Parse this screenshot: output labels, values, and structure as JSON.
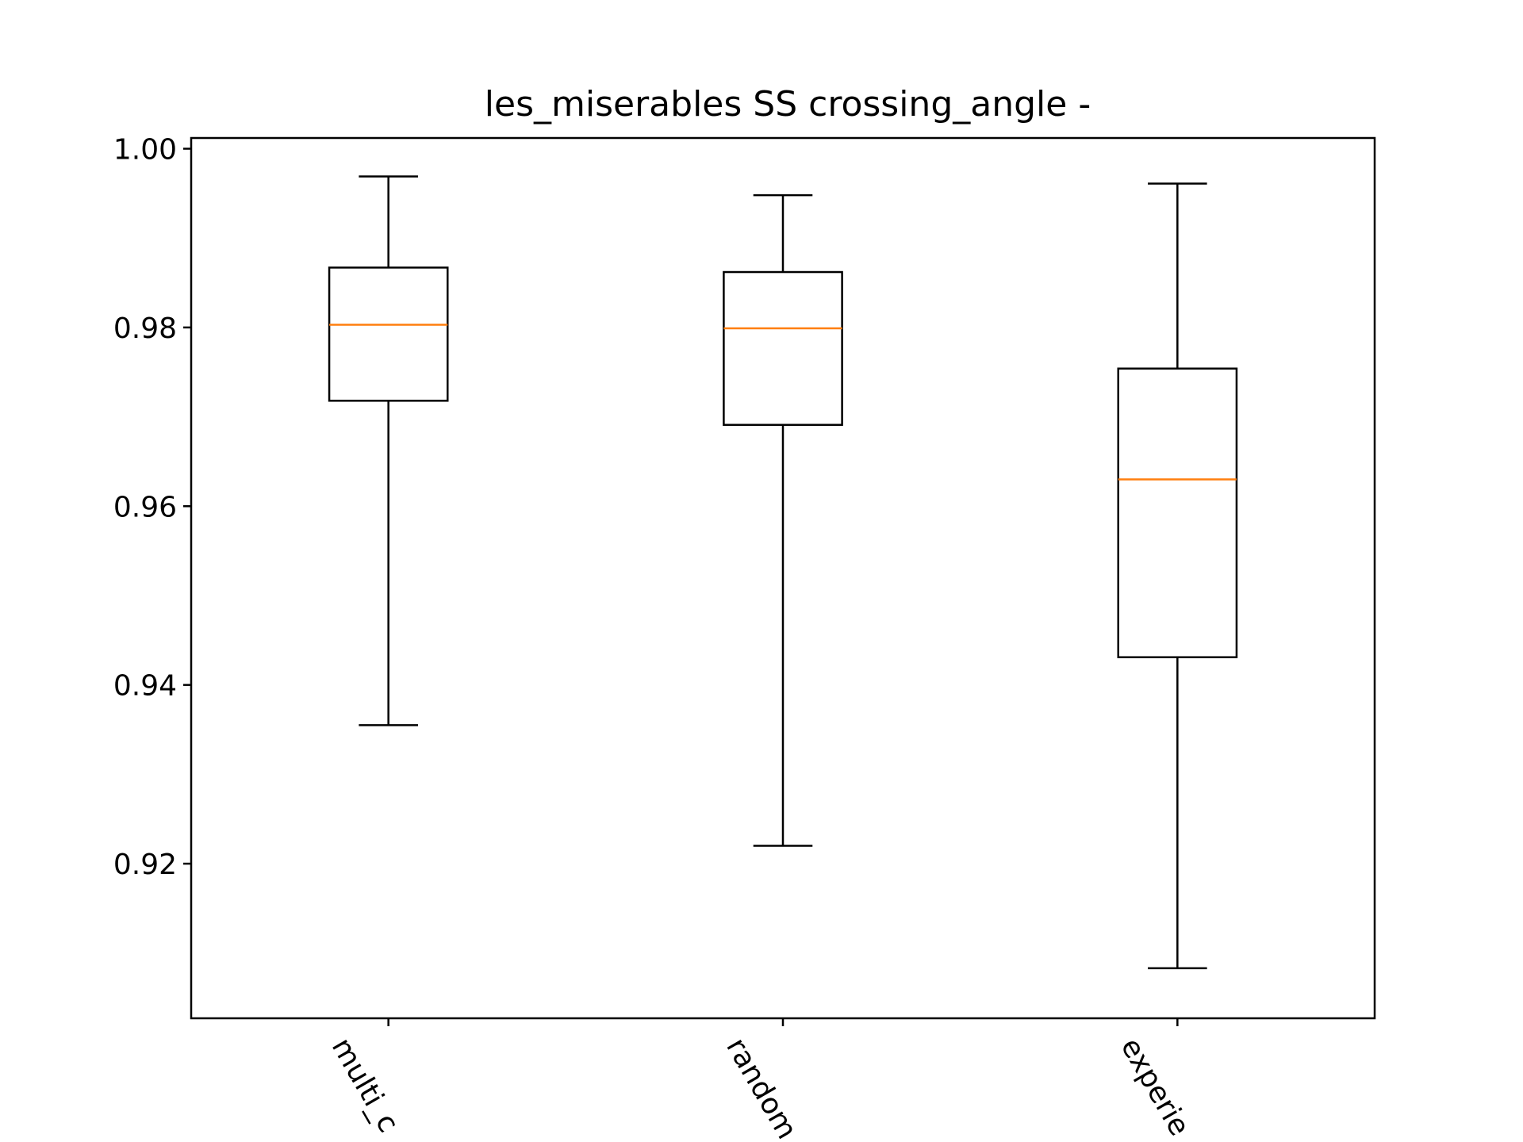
{
  "chart_data": {
    "type": "box",
    "title": "les_miserables SS crossing_angle -",
    "xlabel": "",
    "ylabel": "",
    "categories": [
      "multi_c",
      "random",
      "experie"
    ],
    "boxes": [
      {
        "category": "multi_c",
        "whisker_low": 0.9355,
        "q1": 0.9718,
        "median": 0.9803,
        "q3": 0.9867,
        "whisker_high": 0.9969
      },
      {
        "category": "random",
        "whisker_low": 0.922,
        "q1": 0.9691,
        "median": 0.9799,
        "q3": 0.9862,
        "whisker_high": 0.9948
      },
      {
        "category": "experie",
        "whisker_low": 0.9083,
        "q1": 0.9431,
        "median": 0.963,
        "q3": 0.9754,
        "whisker_high": 0.9961
      }
    ],
    "ylim": [
      0.9027,
      1.0012
    ],
    "yticks": [
      0.92,
      0.94,
      0.96,
      0.98,
      1.0
    ],
    "ytick_labels": [
      "0.92",
      "0.94",
      "0.96",
      "0.98",
      "1.00"
    ],
    "grid": false,
    "colors": {
      "box": "#000000",
      "median": "#ff7f0e",
      "background": "#ffffff"
    }
  }
}
